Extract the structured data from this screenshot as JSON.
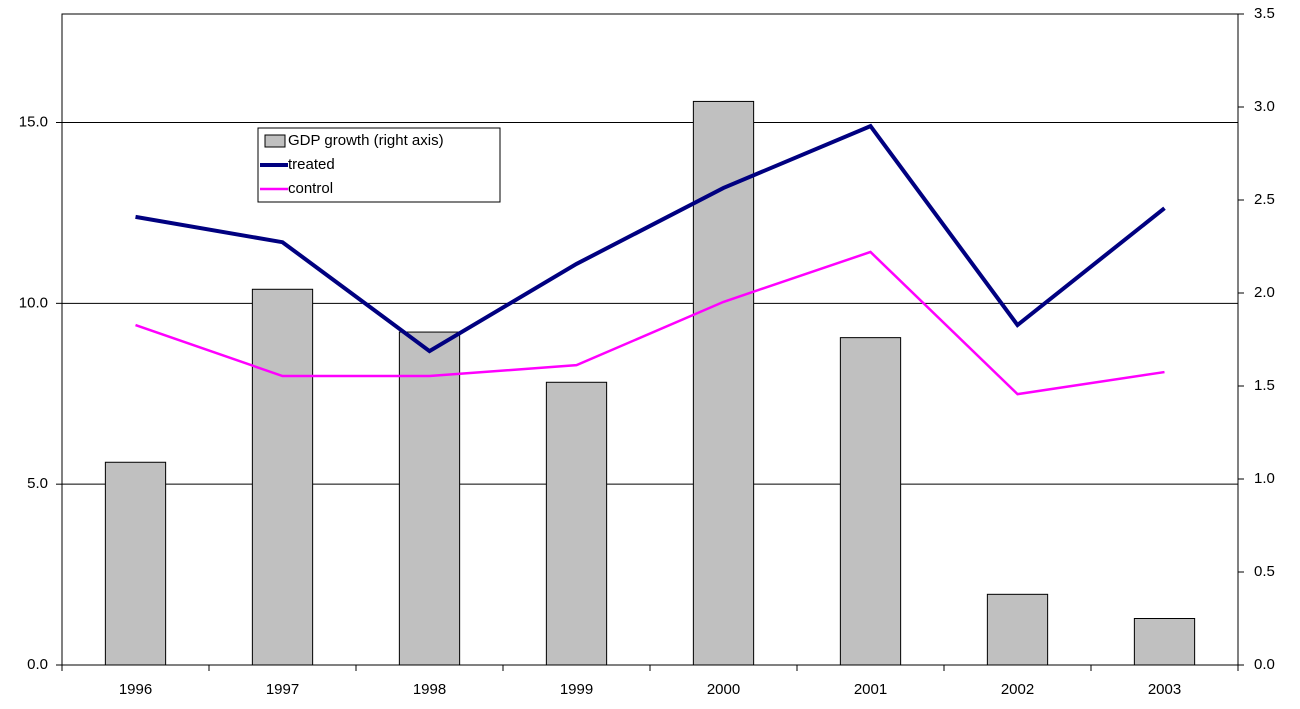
{
  "chart_data": {
    "type": "bar",
    "categories": [
      "1996",
      "1997",
      "1998",
      "1999",
      "2000",
      "2001",
      "2002",
      "2003"
    ],
    "series": [
      {
        "name": "GDP growth (right axis)",
        "type": "bar",
        "axis": "y2",
        "color": "#c0c0c0",
        "values": [
          1.09,
          2.02,
          1.79,
          1.52,
          3.03,
          1.76,
          0.38,
          0.25
        ]
      },
      {
        "name": "treated",
        "type": "line",
        "axis": "y",
        "color": "#000080",
        "values": [
          12.39,
          11.69,
          8.68,
          11.09,
          13.19,
          14.9,
          9.4,
          12.63
        ]
      },
      {
        "name": "control",
        "type": "line",
        "axis": "y",
        "color": "#ff00ff",
        "values": [
          9.4,
          7.99,
          7.99,
          8.29,
          10.04,
          11.42,
          7.49,
          8.1
        ]
      }
    ],
    "ylim": [
      0,
      18
    ],
    "yticks": [
      {
        "value": 0,
        "label": "0.0"
      },
      {
        "value": 5,
        "label": "5.0"
      },
      {
        "value": 10,
        "label": "10.0"
      },
      {
        "value": 15,
        "label": "15.0"
      }
    ],
    "y2lim": [
      0,
      3.5
    ],
    "y2ticks": [
      {
        "value": 0,
        "label": "0.0"
      },
      {
        "value": 0.5,
        "label": "0.5"
      },
      {
        "value": 1,
        "label": "1.0"
      },
      {
        "value": 1.5,
        "label": "1.5"
      },
      {
        "value": 2,
        "label": "2.0"
      },
      {
        "value": 2.5,
        "label": "2.5"
      },
      {
        "value": 3,
        "label": "3.0"
      },
      {
        "value": 3.5,
        "label": "3.5"
      }
    ],
    "grid": true,
    "legend": "upper-left"
  }
}
